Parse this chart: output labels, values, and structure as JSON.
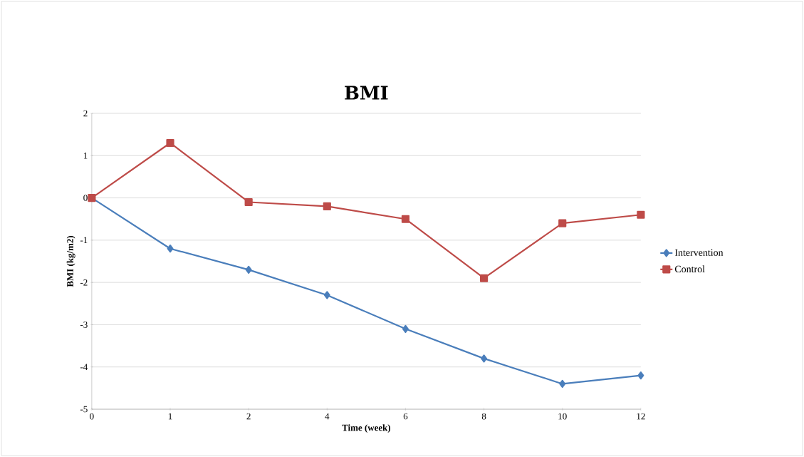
{
  "chart_data": {
    "type": "line",
    "title": "BMI",
    "xlabel": "Time (week)",
    "ylabel": "BMI (kg/m2)",
    "categories": [
      "0",
      "1",
      "2",
      "4",
      "6",
      "8",
      "10",
      "12"
    ],
    "series": [
      {
        "name": "Intervention",
        "color": "#4a7ebb",
        "marker": "diamond",
        "values": [
          0,
          -1.2,
          -1.7,
          -2.3,
          -3.1,
          -3.8,
          -4.4,
          -4.2
        ]
      },
      {
        "name": "Control",
        "color": "#be4b48",
        "marker": "square",
        "values": [
          0,
          1.3,
          -0.1,
          -0.2,
          -0.5,
          -1.9,
          -0.6,
          -0.4
        ]
      }
    ],
    "ylim": [
      -5,
      2
    ],
    "yticks": [
      -5,
      -4,
      -3,
      -2,
      -1,
      0,
      1,
      2
    ],
    "grid": "y",
    "legend": "right",
    "line_style": "solid"
  }
}
